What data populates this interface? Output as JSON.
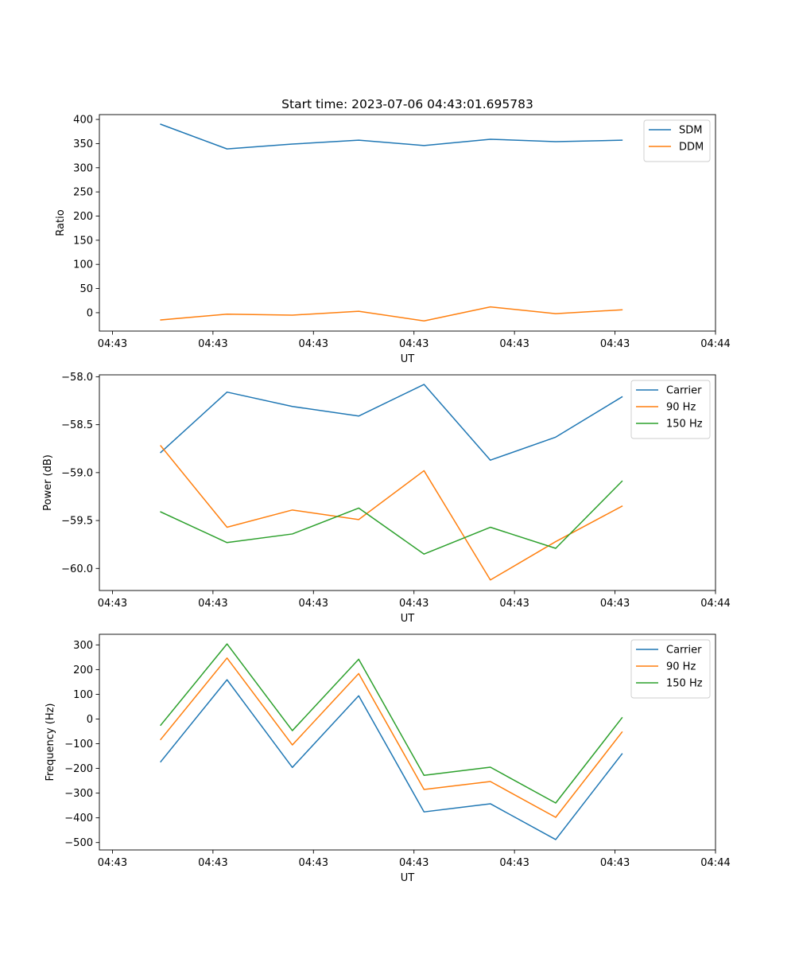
{
  "figure": {
    "title": "Start time: 2023-07-06 04:43:01.695783",
    "colors": {
      "blue": "#1f77b4",
      "orange": "#ff7f0e",
      "green": "#2ca02c"
    }
  },
  "chart_data": [
    {
      "type": "line",
      "title": "Start time: 2023-07-06 04:43:01.695783",
      "xlabel": "UT",
      "ylabel": "Ratio",
      "x_unit": "seconds after 04:43:00",
      "x": [
        4.8,
        11.4,
        17.9,
        24.5,
        31.0,
        37.6,
        44.1,
        50.7
      ],
      "xlim": [
        -1.3,
        60.0
      ],
      "x_ticks": [
        0,
        10,
        20,
        30,
        40,
        50,
        60
      ],
      "x_tick_labels": [
        "04:43",
        "04:43",
        "04:43",
        "04:43",
        "04:43",
        "04:43",
        "04:44"
      ],
      "ylim": [
        -38,
        410
      ],
      "y_ticks": [
        0,
        50,
        100,
        150,
        200,
        250,
        300,
        350,
        400
      ],
      "y_tick_labels": [
        "0",
        "50",
        "100",
        "150",
        "200",
        "250",
        "300",
        "350",
        "400"
      ],
      "legend_position": "upper-right",
      "grid": false,
      "series": [
        {
          "name": "SDM",
          "color": "#1f77b4",
          "values": [
            390,
            339,
            349,
            357,
            346,
            359,
            354,
            357
          ]
        },
        {
          "name": "DDM",
          "color": "#ff7f0e",
          "values": [
            -15,
            -3,
            -5,
            3,
            -17,
            12,
            -2,
            6
          ]
        }
      ]
    },
    {
      "type": "line",
      "title": "",
      "xlabel": "UT",
      "ylabel": "Power (dB)",
      "x_unit": "seconds after 04:43:00",
      "x": [
        4.8,
        11.4,
        17.9,
        24.5,
        31.0,
        37.6,
        44.1,
        50.7
      ],
      "xlim": [
        -1.3,
        60.0
      ],
      "x_ticks": [
        0,
        10,
        20,
        30,
        40,
        50,
        60
      ],
      "x_tick_labels": [
        "04:43",
        "04:43",
        "04:43",
        "04:43",
        "04:43",
        "04:43",
        "04:44"
      ],
      "ylim": [
        -60.23,
        -57.98
      ],
      "y_ticks": [
        -60.0,
        -59.5,
        -59.0,
        -58.5,
        -58.0
      ],
      "y_tick_labels": [
        "−60.0",
        "−59.5",
        "−59.0",
        "−58.5",
        "−58.0"
      ],
      "legend_position": "upper-right",
      "grid": false,
      "series": [
        {
          "name": "Carrier",
          "color": "#1f77b4",
          "values": [
            -58.79,
            -58.16,
            -58.31,
            -58.41,
            -58.08,
            -58.87,
            -58.63,
            -58.21
          ]
        },
        {
          "name": "90 Hz",
          "color": "#ff7f0e",
          "values": [
            -58.72,
            -59.57,
            -59.39,
            -59.49,
            -58.98,
            -60.12,
            -59.72,
            -59.35
          ]
        },
        {
          "name": "150 Hz",
          "color": "#2ca02c",
          "values": [
            -59.41,
            -59.73,
            -59.64,
            -59.37,
            -59.85,
            -59.57,
            -59.79,
            -59.09
          ]
        }
      ]
    },
    {
      "type": "line",
      "title": "",
      "xlabel": "UT",
      "ylabel": "Frequency (Hz)",
      "x_unit": "seconds after 04:43:00",
      "x": [
        4.8,
        11.4,
        17.9,
        24.5,
        31.0,
        37.6,
        44.1,
        50.7
      ],
      "xlim": [
        -1.3,
        60.0
      ],
      "x_ticks": [
        0,
        10,
        20,
        30,
        40,
        50,
        60
      ],
      "x_tick_labels": [
        "04:43",
        "04:43",
        "04:43",
        "04:43",
        "04:43",
        "04:43",
        "04:44"
      ],
      "ylim": [
        -530,
        343
      ],
      "y_ticks": [
        -500,
        -400,
        -300,
        -200,
        -100,
        0,
        100,
        200,
        300
      ],
      "y_tick_labels": [
        "−500",
        "−400",
        "−300",
        "−200",
        "−100",
        "0",
        "100",
        "200",
        "300"
      ],
      "legend_position": "upper-right",
      "grid": false,
      "series": [
        {
          "name": "Carrier",
          "color": "#1f77b4",
          "values": [
            -173,
            159,
            -196,
            94,
            -376,
            -343,
            -488,
            -141
          ]
        },
        {
          "name": "90 Hz",
          "color": "#ff7f0e",
          "values": [
            -83,
            247,
            -105,
            184,
            -285,
            -253,
            -398,
            -53
          ]
        },
        {
          "name": "150 Hz",
          "color": "#2ca02c",
          "values": [
            -25,
            304,
            -47,
            242,
            -228,
            -195,
            -340,
            5
          ]
        }
      ]
    }
  ]
}
